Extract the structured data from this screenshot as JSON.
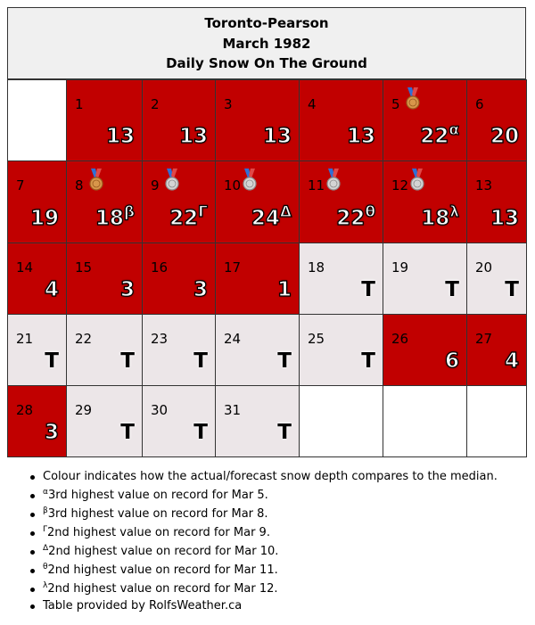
{
  "header": {
    "station": "Toronto-Pearson",
    "month": "March 1982",
    "metric": "Daily Snow On The Ground"
  },
  "colors": {
    "above_median": "#c10000",
    "below_median": "#ece6e8",
    "empty": "#ffffff"
  },
  "weeks": [
    [
      {
        "empty": true
      },
      {
        "day": "1",
        "value": "13",
        "status": "above"
      },
      {
        "day": "2",
        "value": "13",
        "status": "above"
      },
      {
        "day": "3",
        "value": "13",
        "status": "above"
      },
      {
        "day": "4",
        "value": "13",
        "status": "above"
      },
      {
        "day": "5",
        "value": "22",
        "sup": "α",
        "status": "above",
        "medal": "bronze"
      },
      {
        "day": "6",
        "value": "20",
        "status": "above"
      }
    ],
    [
      {
        "day": "7",
        "value": "19",
        "status": "above"
      },
      {
        "day": "8",
        "value": "18",
        "sup": "β",
        "status": "above",
        "medal": "bronze"
      },
      {
        "day": "9",
        "value": "22",
        "sup": "Γ",
        "status": "above",
        "medal": "silver"
      },
      {
        "day": "10",
        "value": "24",
        "sup": "Δ",
        "status": "above",
        "medal": "silver"
      },
      {
        "day": "11",
        "value": "22",
        "sup": "θ",
        "status": "above",
        "medal": "silver"
      },
      {
        "day": "12",
        "value": "18",
        "sup": "λ",
        "status": "above",
        "medal": "silver"
      },
      {
        "day": "13",
        "value": "13",
        "status": "above"
      }
    ],
    [
      {
        "day": "14",
        "value": "4",
        "status": "above"
      },
      {
        "day": "15",
        "value": "3",
        "status": "above"
      },
      {
        "day": "16",
        "value": "3",
        "status": "above"
      },
      {
        "day": "17",
        "value": "1",
        "status": "above"
      },
      {
        "day": "18",
        "value": "T",
        "status": "below"
      },
      {
        "day": "19",
        "value": "T",
        "status": "below"
      },
      {
        "day": "20",
        "value": "T",
        "status": "below"
      }
    ],
    [
      {
        "day": "21",
        "value": "T",
        "status": "below"
      },
      {
        "day": "22",
        "value": "T",
        "status": "below"
      },
      {
        "day": "23",
        "value": "T",
        "status": "below"
      },
      {
        "day": "24",
        "value": "T",
        "status": "below"
      },
      {
        "day": "25",
        "value": "T",
        "status": "below"
      },
      {
        "day": "26",
        "value": "6",
        "status": "above"
      },
      {
        "day": "27",
        "value": "4",
        "status": "above"
      }
    ],
    [
      {
        "day": "28",
        "value": "3",
        "status": "above"
      },
      {
        "day": "29",
        "value": "T",
        "status": "below"
      },
      {
        "day": "30",
        "value": "T",
        "status": "below"
      },
      {
        "day": "31",
        "value": "T",
        "status": "below"
      },
      {
        "empty": true
      },
      {
        "empty": true
      },
      {
        "empty": true
      }
    ]
  ],
  "notes": [
    {
      "sup": "",
      "text": "Colour indicates how the actual/forecast snow depth compares to the median."
    },
    {
      "sup": "α",
      "text": "3rd highest value on record for Mar 5."
    },
    {
      "sup": "β",
      "text": "3rd highest value on record for Mar 8."
    },
    {
      "sup": "Γ",
      "text": "2nd highest value on record for Mar 9."
    },
    {
      "sup": "Δ",
      "text": "2nd highest value on record for Mar 10."
    },
    {
      "sup": "θ",
      "text": "2nd highest value on record for Mar 11."
    },
    {
      "sup": "λ",
      "text": "2nd highest value on record for Mar 12."
    },
    {
      "sup": "",
      "text": "Table provided by RolfsWeather.ca"
    }
  ]
}
